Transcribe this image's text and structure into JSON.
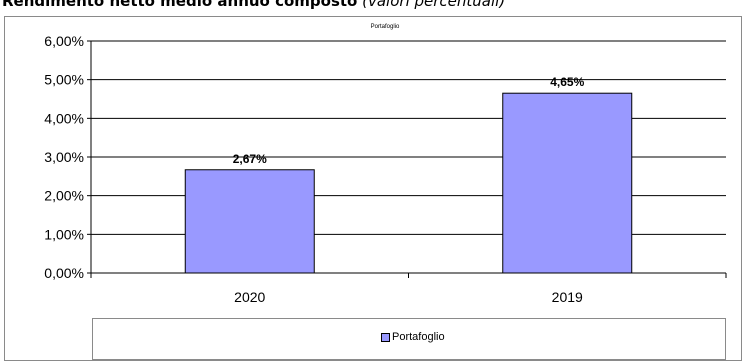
{
  "header": {
    "title_bold": "Rendimento netto medio annuo composto",
    "title_italic": "(valori percentuali)"
  },
  "colors": {
    "bar": "#9999ff",
    "bar_stroke": "#000000",
    "grid": "#000000"
  },
  "chart_data": {
    "type": "bar",
    "title": "Portafoglio",
    "categories": [
      "2020",
      "2019"
    ],
    "series": [
      {
        "name": "Portafoglio",
        "values": [
          2.67,
          4.65
        ]
      }
    ],
    "data_labels": [
      "2,67%",
      "4,65%"
    ],
    "y_ticks": [
      "0,00%",
      "1,00%",
      "2,00%",
      "3,00%",
      "4,00%",
      "5,00%",
      "6,00%"
    ],
    "ylim": [
      0,
      6
    ],
    "grid": true,
    "legend": "bottom"
  }
}
